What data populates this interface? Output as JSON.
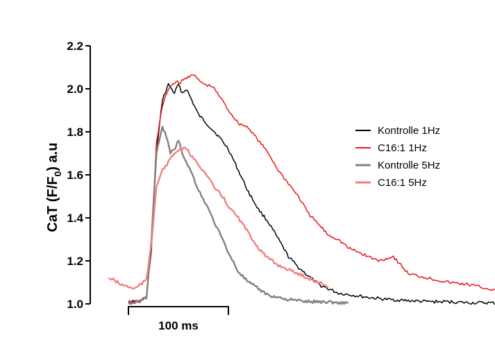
{
  "chart_data": {
    "type": "line",
    "title": "",
    "xlabel": "",
    "ylabel": {
      "main": "CaT (F/F",
      "subscript": "0",
      "suffix": ") a.u"
    },
    "ylim": [
      1.0,
      2.2
    ],
    "yticks": [
      "1.0",
      "1.2",
      "1.4",
      "1.6",
      "1.8",
      "2.0",
      "2.2"
    ],
    "scale_bar": {
      "label": "100 ms",
      "length_ms": 100
    },
    "grid": false,
    "legend_position": "right",
    "series": [
      {
        "name": "Kontrolle 1Hz",
        "color": "#000000",
        "x": [
          0,
          10,
          18,
          23,
          28,
          34,
          40,
          46,
          50,
          54,
          58,
          62,
          66,
          70,
          76,
          82,
          90,
          100,
          110,
          120,
          130,
          140,
          150,
          160,
          170,
          180,
          190,
          200,
          210,
          225,
          240,
          260,
          280,
          300,
          320,
          340,
          360,
          380
        ],
        "y": [
          1.01,
          1.01,
          1.03,
          1.25,
          1.7,
          1.95,
          2.02,
          1.98,
          2.02,
          1.98,
          2.0,
          1.96,
          1.92,
          1.88,
          1.85,
          1.82,
          1.78,
          1.72,
          1.62,
          1.52,
          1.44,
          1.38,
          1.3,
          1.22,
          1.17,
          1.13,
          1.09,
          1.07,
          1.05,
          1.04,
          1.03,
          1.02,
          1.015,
          1.01,
          1.01,
          1.005,
          1.005,
          1.0
        ]
      },
      {
        "name": "C16:1 1Hz",
        "color": "#e8141b",
        "x": [
          0,
          10,
          18,
          23,
          28,
          34,
          40,
          46,
          52,
          58,
          64,
          70,
          76,
          84,
          92,
          100,
          110,
          120,
          130,
          140,
          150,
          160,
          170,
          180,
          190,
          200,
          210,
          220,
          235,
          250,
          265,
          280,
          300,
          320,
          340,
          360,
          380
        ],
        "y": [
          1.01,
          1.01,
          1.03,
          1.3,
          1.75,
          1.92,
          2.0,
          2.03,
          2.03,
          2.05,
          2.07,
          2.04,
          2.02,
          2.01,
          1.96,
          1.9,
          1.84,
          1.82,
          1.76,
          1.7,
          1.62,
          1.56,
          1.5,
          1.42,
          1.37,
          1.32,
          1.3,
          1.26,
          1.23,
          1.2,
          1.22,
          1.14,
          1.12,
          1.1,
          1.09,
          1.07,
          1.05
        ]
      },
      {
        "name": "Kontrolle 5Hz",
        "color": "#808080",
        "x": [
          0,
          10,
          18,
          23,
          28,
          34,
          38,
          42,
          46,
          50,
          54,
          58,
          64,
          70,
          78,
          86,
          94,
          102,
          110,
          120,
          130,
          140,
          150,
          160,
          170,
          180,
          190,
          200,
          210,
          220
        ],
        "y": [
          1.0,
          1.01,
          1.03,
          1.3,
          1.7,
          1.82,
          1.78,
          1.7,
          1.72,
          1.76,
          1.7,
          1.66,
          1.6,
          1.53,
          1.46,
          1.38,
          1.3,
          1.22,
          1.15,
          1.1,
          1.07,
          1.04,
          1.03,
          1.02,
          1.015,
          1.01,
          1.01,
          1.01,
          1.005,
          1.005
        ]
      },
      {
        "name": "C16:1 5Hz",
        "color": "#f08080",
        "x": [
          -20,
          -14,
          -8,
          0,
          6,
          12,
          18,
          23,
          28,
          34,
          40,
          46,
          52,
          58,
          64,
          70,
          78,
          86,
          94,
          102,
          110,
          120,
          130,
          140,
          150,
          160,
          170,
          180,
          190,
          200
        ],
        "y": [
          1.12,
          1.11,
          1.09,
          1.08,
          1.07,
          1.09,
          1.11,
          1.28,
          1.55,
          1.62,
          1.66,
          1.7,
          1.72,
          1.72,
          1.68,
          1.65,
          1.6,
          1.54,
          1.5,
          1.44,
          1.4,
          1.33,
          1.26,
          1.21,
          1.18,
          1.16,
          1.14,
          1.12,
          1.1,
          1.08
        ]
      }
    ]
  }
}
